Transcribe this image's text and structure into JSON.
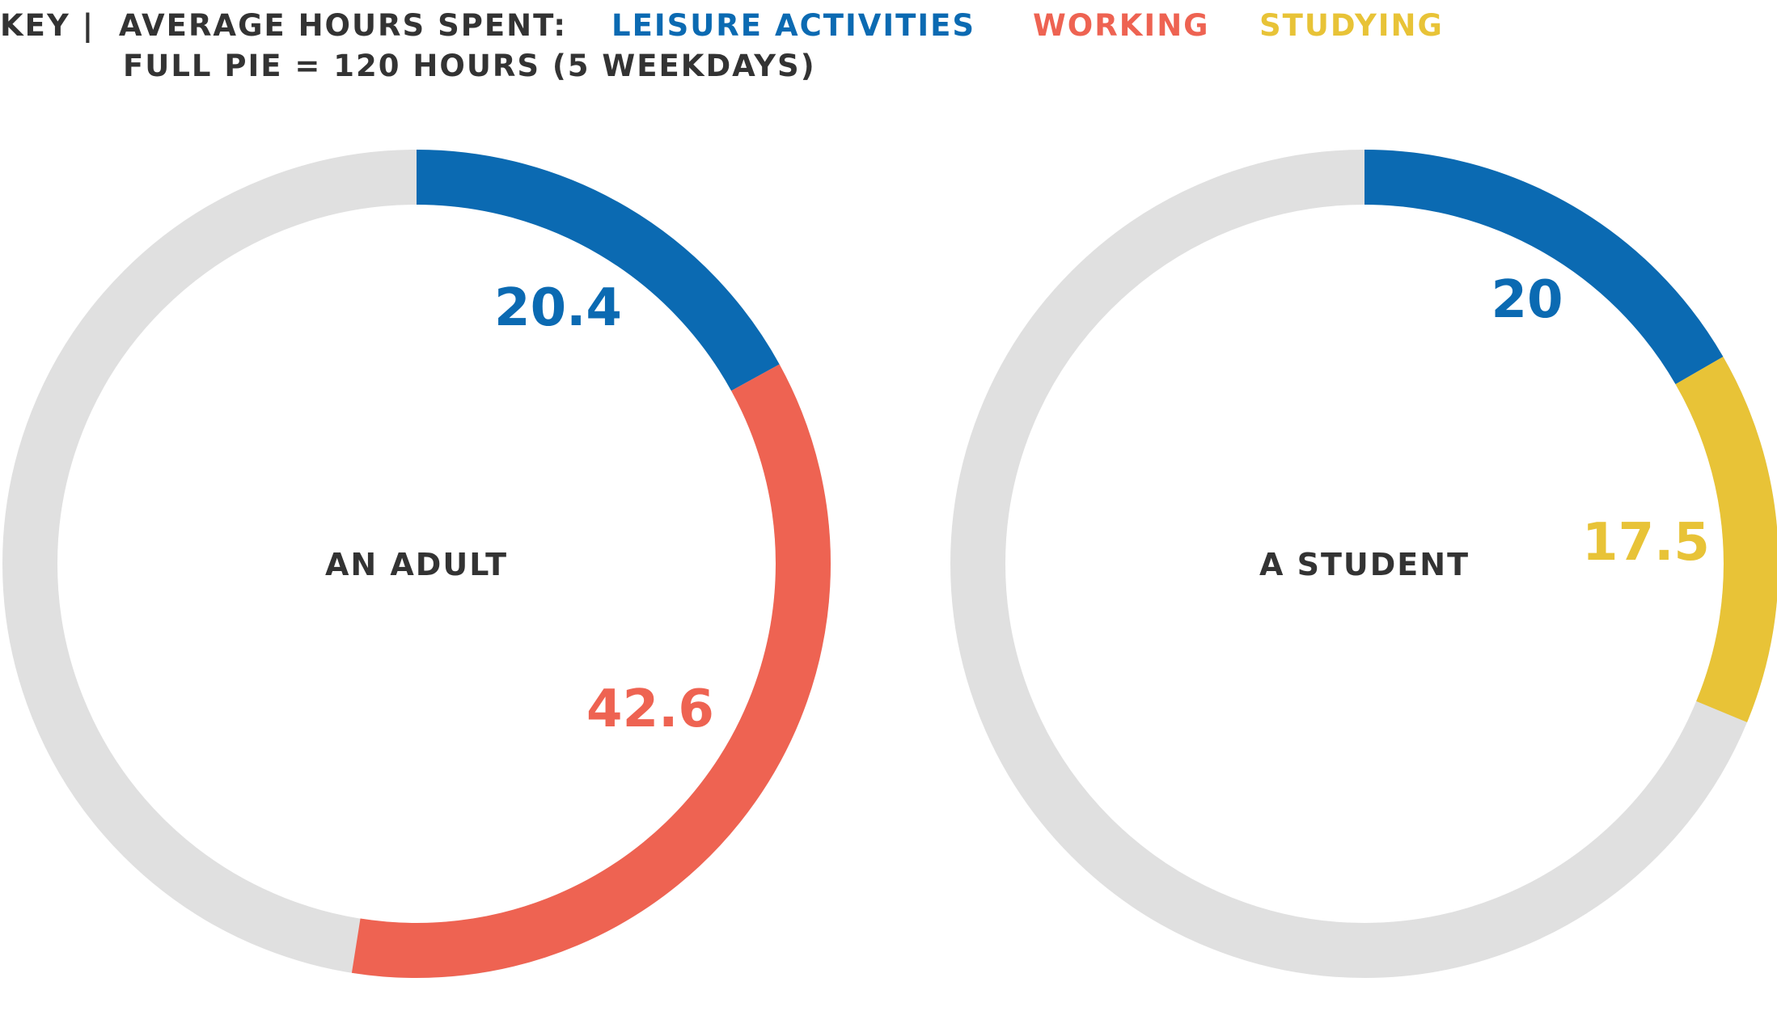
{
  "legend": {
    "prefix": "KEY |",
    "title": "AVERAGE HOURS SPENT:",
    "subtitle": "FULL PIE = 120 HOURS (5 WEEKDAYS)",
    "items": [
      {
        "label": "LEISURE ACTIVITIES",
        "color": "#0b6ab2"
      },
      {
        "label": "WORKING",
        "color": "#ee6352"
      },
      {
        "label": "STUDYING",
        "color": "#e8c337"
      }
    ]
  },
  "chart_data": [
    {
      "type": "pie",
      "style": "donut",
      "center_label": "AN ADULT",
      "total": 120,
      "track_color": "#e0e0e0",
      "slices": [
        {
          "category": "LEISURE ACTIVITIES",
          "value": 20.4,
          "label": "20.4",
          "color": "#0b6ab2"
        },
        {
          "category": "WORKING",
          "value": 42.6,
          "label": "42.6",
          "color": "#ee6352"
        }
      ]
    },
    {
      "type": "pie",
      "style": "donut",
      "center_label": "A STUDENT",
      "total": 120,
      "track_color": "#e0e0e0",
      "slices": [
        {
          "category": "LEISURE ACTIVITIES",
          "value": 20,
          "label": "20",
          "color": "#0b6ab2"
        },
        {
          "category": "STUDYING",
          "value": 17.5,
          "label": "17.5",
          "color": "#e8c337"
        }
      ]
    }
  ]
}
